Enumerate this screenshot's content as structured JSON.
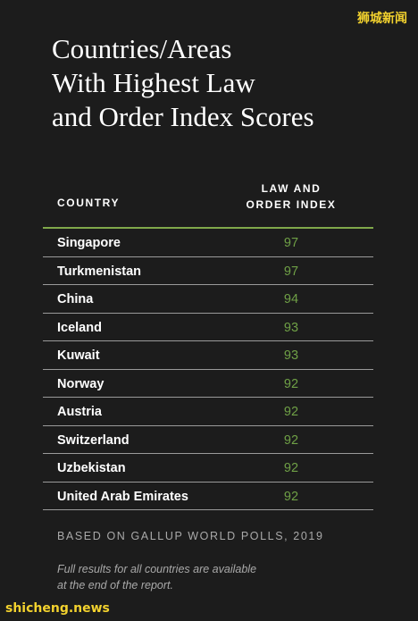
{
  "watermark_top": "狮城新闻",
  "title": "Countries/Areas\nWith Highest Law\nand Order Index Scores",
  "table": {
    "header_country": "COUNTRY",
    "header_index": "LAW AND\nORDER INDEX",
    "rows": [
      {
        "country": "Singapore",
        "score": "97"
      },
      {
        "country": "Turkmenistan",
        "score": "97"
      },
      {
        "country": "China",
        "score": "94"
      },
      {
        "country": "Iceland",
        "score": "93"
      },
      {
        "country": "Kuwait",
        "score": "93"
      },
      {
        "country": "Norway",
        "score": "92"
      },
      {
        "country": "Austria",
        "score": "92"
      },
      {
        "country": "Switzerland",
        "score": "92"
      },
      {
        "country": "Uzbekistan",
        "score": "92"
      },
      {
        "country": "United Arab Emirates",
        "score": "92"
      }
    ]
  },
  "source": "BASED ON GALLUP WORLD POLLS, 2019",
  "note": "Full results for all countries are available\nat the end of the report.",
  "watermark_bottom": "shicheng.news",
  "colors": {
    "background": "#1c1c1c",
    "accent_green": "#6fa046",
    "watermark": "#f3d22e"
  }
}
